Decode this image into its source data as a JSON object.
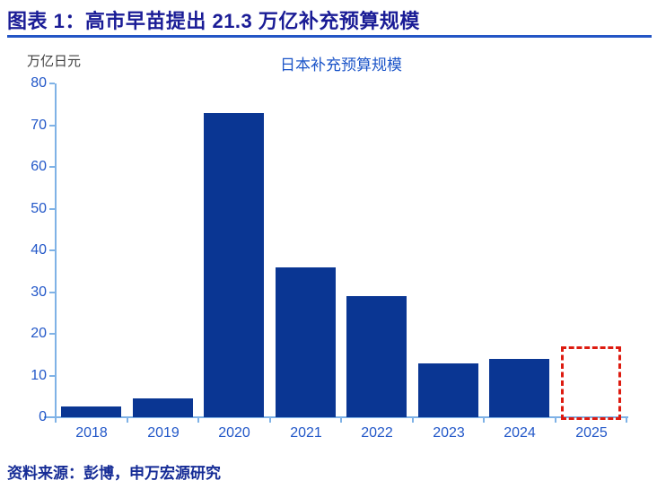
{
  "header": {
    "title": "图表 1：高市早苗提出 21.3 万亿补充预算规模"
  },
  "chart_data": {
    "type": "bar",
    "title": "日本补充预算规模",
    "unit_label": "万亿日元",
    "categories": [
      "2018",
      "2019",
      "2020",
      "2021",
      "2022",
      "2023",
      "2024",
      "2025"
    ],
    "values": [
      2.5,
      4.5,
      73,
      36,
      29,
      13,
      13.9,
      17.7
    ],
    "highlight_category": "2025",
    "highlight_style": "dashed-red-outline-empty-fill",
    "ylim": [
      0,
      80
    ],
    "yticks": [
      0,
      10,
      20,
      30,
      40,
      50,
      60,
      70,
      80
    ],
    "grid": false,
    "legend": false,
    "bar_color": "#0a3693",
    "highlight_color": "#dd1b10",
    "axis_color": "#7fb2e6",
    "tick_label_color": "#2257c8"
  },
  "footer": {
    "source": "资料来源：彭博，申万宏源研究"
  },
  "colors": {
    "header_text": "#1a1c96",
    "header_underline": "#2355c5",
    "chart_title": "#1b54c8",
    "unit_label": "#404040",
    "source_text": "#162c96",
    "background": "#ffffff"
  }
}
